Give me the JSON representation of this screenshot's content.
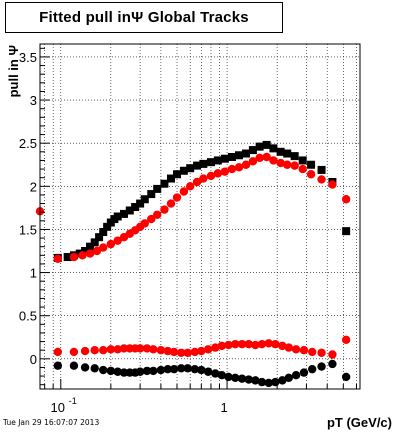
{
  "chart_data": {
    "type": "scatter",
    "title": "Fitted pull inΨ   Global Tracks",
    "xlabel": "pT (GeV/c)",
    "ylabel": "pull in Ψ",
    "xscale": "log",
    "xlim": [
      0.075,
      6.3
    ],
    "ylim": [
      -0.35,
      3.65
    ],
    "grid": true,
    "xticks": [
      {
        "value": 0.1,
        "base": "10",
        "exp": "-1"
      },
      {
        "value": 1,
        "base": "1",
        "exp": ""
      }
    ],
    "yticks": [
      0,
      0.5,
      1,
      1.5,
      2,
      2.5,
      3,
      3.5
    ],
    "series": [
      {
        "marker": "square",
        "color": "#000000",
        "x": [
          0.096,
          0.11,
          0.12,
          0.13,
          0.14,
          0.15,
          0.16,
          0.17,
          0.18,
          0.19,
          0.2,
          0.21,
          0.22,
          0.24,
          0.26,
          0.28,
          0.3,
          0.32,
          0.35,
          0.38,
          0.42,
          0.46,
          0.5,
          0.55,
          0.6,
          0.66,
          0.72,
          0.8,
          0.88,
          0.97,
          1.07,
          1.18,
          1.3,
          1.43,
          1.57,
          1.73,
          1.9,
          2.1,
          2.3,
          2.55,
          2.85,
          3.2,
          3.7,
          4.3,
          5.2
        ],
        "y": [
          1.17,
          1.18,
          1.2,
          1.22,
          1.25,
          1.3,
          1.35,
          1.41,
          1.47,
          1.53,
          1.58,
          1.62,
          1.65,
          1.68,
          1.72,
          1.76,
          1.8,
          1.85,
          1.91,
          1.97,
          2.03,
          2.09,
          2.14,
          2.18,
          2.21,
          2.24,
          2.26,
          2.28,
          2.3,
          2.32,
          2.34,
          2.36,
          2.38,
          2.42,
          2.46,
          2.48,
          2.44,
          2.4,
          2.38,
          2.35,
          2.3,
          2.25,
          2.19,
          2.05,
          1.48
        ]
      },
      {
        "marker": "circle",
        "color": "#ff0000",
        "x": [
          0.075,
          0.096,
          0.12,
          0.135,
          0.15,
          0.165,
          0.18,
          0.2,
          0.22,
          0.24,
          0.26,
          0.28,
          0.3,
          0.32,
          0.35,
          0.38,
          0.42,
          0.46,
          0.5,
          0.55,
          0.6,
          0.66,
          0.72,
          0.8,
          0.88,
          0.97,
          1.07,
          1.18,
          1.3,
          1.43,
          1.57,
          1.73,
          1.9,
          2.1,
          2.3,
          2.55,
          2.85,
          3.2,
          3.7,
          4.3,
          5.2
        ],
        "y": [
          1.71,
          1.16,
          1.18,
          1.2,
          1.22,
          1.25,
          1.29,
          1.33,
          1.37,
          1.41,
          1.45,
          1.49,
          1.53,
          1.57,
          1.62,
          1.67,
          1.73,
          1.8,
          1.87,
          1.94,
          2.0,
          2.05,
          2.09,
          2.12,
          2.15,
          2.17,
          2.2,
          2.22,
          2.25,
          2.29,
          2.33,
          2.34,
          2.3,
          2.27,
          2.25,
          2.24,
          2.2,
          2.14,
          2.08,
          2.02,
          1.85
        ]
      },
      {
        "marker": "circle",
        "color": "#ff0000",
        "x": [
          0.096,
          0.12,
          0.14,
          0.16,
          0.18,
          0.2,
          0.22,
          0.24,
          0.26,
          0.28,
          0.3,
          0.33,
          0.36,
          0.4,
          0.44,
          0.48,
          0.53,
          0.58,
          0.64,
          0.7,
          0.77,
          0.85,
          0.93,
          1.02,
          1.12,
          1.23,
          1.35,
          1.48,
          1.62,
          1.78,
          1.95,
          2.15,
          2.35,
          2.6,
          2.9,
          3.25,
          3.7,
          4.3,
          5.2
        ],
        "y": [
          0.08,
          0.08,
          0.09,
          0.1,
          0.1,
          0.11,
          0.11,
          0.12,
          0.12,
          0.12,
          0.12,
          0.12,
          0.11,
          0.1,
          0.09,
          0.08,
          0.07,
          0.07,
          0.08,
          0.09,
          0.11,
          0.13,
          0.15,
          0.16,
          0.17,
          0.17,
          0.17,
          0.16,
          0.17,
          0.18,
          0.17,
          0.15,
          0.13,
          0.11,
          0.1,
          0.08,
          0.07,
          0.05,
          0.22
        ]
      },
      {
        "marker": "circle",
        "color": "#000000",
        "x": [
          0.096,
          0.12,
          0.14,
          0.16,
          0.18,
          0.2,
          0.22,
          0.24,
          0.26,
          0.28,
          0.3,
          0.33,
          0.36,
          0.4,
          0.44,
          0.48,
          0.53,
          0.58,
          0.64,
          0.7,
          0.77,
          0.85,
          0.93,
          1.02,
          1.12,
          1.23,
          1.35,
          1.48,
          1.62,
          1.78,
          1.95,
          2.15,
          2.35,
          2.6,
          2.9,
          3.25,
          3.7,
          4.3,
          5.2
        ],
        "y": [
          -0.08,
          -0.08,
          -0.1,
          -0.11,
          -0.13,
          -0.14,
          -0.15,
          -0.16,
          -0.16,
          -0.16,
          -0.15,
          -0.14,
          -0.14,
          -0.13,
          -0.12,
          -0.12,
          -0.11,
          -0.11,
          -0.12,
          -0.13,
          -0.15,
          -0.17,
          -0.19,
          -0.21,
          -0.22,
          -0.23,
          -0.24,
          -0.25,
          -0.27,
          -0.28,
          -0.27,
          -0.25,
          -0.22,
          -0.19,
          -0.16,
          -0.12,
          -0.09,
          -0.06,
          -0.21
        ]
      }
    ]
  },
  "timestamp": "Tue Jan 29 16:07:07 2013"
}
